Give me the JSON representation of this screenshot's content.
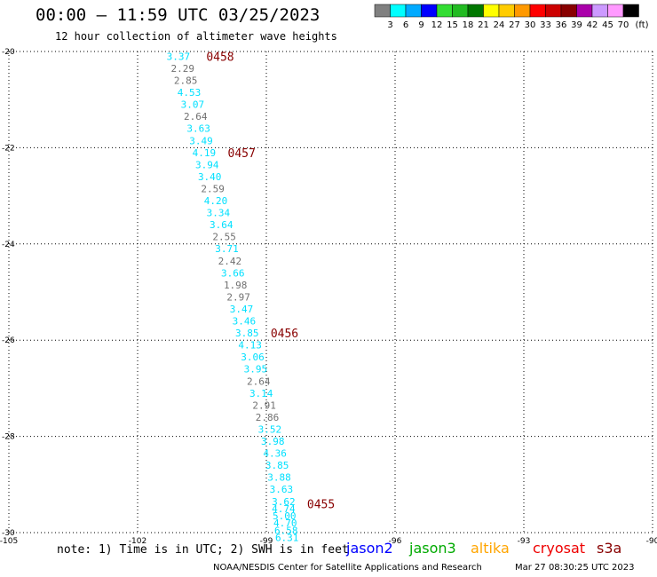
{
  "header": {
    "title": "00:00 — 11:59 UTC 03/25/2023",
    "subtitle": "12 hour collection of altimeter wave heights"
  },
  "legend": {
    "levels": [
      "3",
      "6",
      "9",
      "12",
      "15",
      "18",
      "21",
      "24",
      "27",
      "30",
      "33",
      "36",
      "39",
      "42",
      "45",
      "70"
    ],
    "unit": "(ft)",
    "colors": [
      "#808080",
      "#00ffff",
      "#00aaff",
      "#0000ff",
      "#33dd33",
      "#22bb22",
      "#007700",
      "#ffff00",
      "#ffcc00",
      "#ff9900",
      "#ff0000",
      "#cc0000",
      "#880000",
      "#aa00aa",
      "#cc99ff",
      "#ff99ff",
      "#000000"
    ]
  },
  "footer": {
    "note": "note: 1) Time is in UTC; 2) SWH is in feet",
    "missions": [
      {
        "label": "jason2",
        "color": "#0000ff"
      },
      {
        "label": "jason3",
        "color": "#00aa00"
      },
      {
        "label": "altika",
        "color": "#ffa500"
      },
      {
        "label": "cryosat",
        "color": "#ee0000"
      },
      {
        "label": "s3a",
        "color": "#880000"
      }
    ],
    "credit": "NOAA/NESDIS Center for Satellite Applications and Research",
    "timestamp": "Mar 27 08:30:25 UTC 2023"
  },
  "chart_data": {
    "type": "scatter",
    "title": "00:00 — 11:59 UTC 03/25/2023",
    "subtitle": "12 hour collection of altimeter wave heights",
    "x_ticks": [
      "-105",
      "-102",
      "-99",
      "-96",
      "-93",
      "-90"
    ],
    "y_ticks": [
      "-20",
      "-22",
      "-24",
      "-26",
      "-28",
      "-30"
    ],
    "xlim": [
      -105,
      -90
    ],
    "ylim": [
      -30,
      -20
    ],
    "grid": true,
    "series": [
      {
        "color_cyan": "#00e0ff",
        "color_gray": "#707070",
        "points": [
          {
            "lat": -20.1,
            "lon": -101.05,
            "v": "3.37",
            "c": "cyan"
          },
          {
            "lat": -20.35,
            "lon": -100.95,
            "v": "2.29",
            "c": "gray"
          },
          {
            "lat": -20.6,
            "lon": -100.88,
            "v": "2.85",
            "c": "gray"
          },
          {
            "lat": -20.85,
            "lon": -100.8,
            "v": "4.53",
            "c": "cyan"
          },
          {
            "lat": -21.1,
            "lon": -100.72,
            "v": "3.07",
            "c": "cyan"
          },
          {
            "lat": -21.35,
            "lon": -100.65,
            "v": "2.64",
            "c": "gray"
          },
          {
            "lat": -21.6,
            "lon": -100.58,
            "v": "3.63",
            "c": "cyan"
          },
          {
            "lat": -21.85,
            "lon": -100.52,
            "v": "3.49",
            "c": "cyan"
          },
          {
            "lat": -22.1,
            "lon": -100.45,
            "v": "4.19",
            "c": "cyan"
          },
          {
            "lat": -22.35,
            "lon": -100.38,
            "v": "3.94",
            "c": "cyan"
          },
          {
            "lat": -22.6,
            "lon": -100.32,
            "v": "3.40",
            "c": "cyan"
          },
          {
            "lat": -22.85,
            "lon": -100.25,
            "v": "2.59",
            "c": "gray"
          },
          {
            "lat": -23.1,
            "lon": -100.18,
            "v": "4.20",
            "c": "cyan"
          },
          {
            "lat": -23.35,
            "lon": -100.12,
            "v": "3.34",
            "c": "cyan"
          },
          {
            "lat": -23.6,
            "lon": -100.05,
            "v": "3.64",
            "c": "cyan"
          },
          {
            "lat": -23.85,
            "lon": -99.98,
            "v": "2.55",
            "c": "gray"
          },
          {
            "lat": -24.1,
            "lon": -99.92,
            "v": "3.71",
            "c": "cyan"
          },
          {
            "lat": -24.35,
            "lon": -99.85,
            "v": "2.42",
            "c": "gray"
          },
          {
            "lat": -24.6,
            "lon": -99.78,
            "v": "3.66",
            "c": "cyan"
          },
          {
            "lat": -24.85,
            "lon": -99.72,
            "v": "1.98",
            "c": "gray"
          },
          {
            "lat": -25.1,
            "lon": -99.65,
            "v": "2.97",
            "c": "gray"
          },
          {
            "lat": -25.35,
            "lon": -99.58,
            "v": "3.47",
            "c": "cyan"
          },
          {
            "lat": -25.6,
            "lon": -99.52,
            "v": "3.46",
            "c": "cyan"
          },
          {
            "lat": -25.85,
            "lon": -99.45,
            "v": "3.85",
            "c": "cyan"
          },
          {
            "lat": -26.1,
            "lon": -99.38,
            "v": "4.13",
            "c": "cyan"
          },
          {
            "lat": -26.35,
            "lon": -99.32,
            "v": "3.06",
            "c": "cyan"
          },
          {
            "lat": -26.6,
            "lon": -99.25,
            "v": "3.95",
            "c": "cyan"
          },
          {
            "lat": -26.85,
            "lon": -99.18,
            "v": "2.64",
            "c": "gray"
          },
          {
            "lat": -27.1,
            "lon": -99.12,
            "v": "3.14",
            "c": "cyan"
          },
          {
            "lat": -27.35,
            "lon": -99.05,
            "v": "2.91",
            "c": "gray"
          },
          {
            "lat": -27.6,
            "lon": -98.98,
            "v": "2.86",
            "c": "gray"
          },
          {
            "lat": -27.85,
            "lon": -98.92,
            "v": "3.52",
            "c": "cyan"
          },
          {
            "lat": -28.1,
            "lon": -98.85,
            "v": "3.98",
            "c": "cyan"
          },
          {
            "lat": -28.35,
            "lon": -98.8,
            "v": "4.36",
            "c": "cyan"
          },
          {
            "lat": -28.6,
            "lon": -98.75,
            "v": "3.85",
            "c": "cyan"
          },
          {
            "lat": -28.85,
            "lon": -98.7,
            "v": "3.88",
            "c": "cyan"
          },
          {
            "lat": -29.1,
            "lon": -98.65,
            "v": "3.63",
            "c": "cyan"
          },
          {
            "lat": -29.35,
            "lon": -98.6,
            "v": "3.62",
            "c": "cyan"
          },
          {
            "lat": -29.5,
            "lon": -98.6,
            "v": "4.74",
            "c": "cyan"
          },
          {
            "lat": -29.65,
            "lon": -98.58,
            "v": "5.00",
            "c": "cyan"
          },
          {
            "lat": -29.8,
            "lon": -98.56,
            "v": "4.70",
            "c": "cyan"
          },
          {
            "lat": -29.95,
            "lon": -98.54,
            "v": "6.58",
            "c": "cyan"
          },
          {
            "lat": -30.1,
            "lon": -98.52,
            "v": "6.31",
            "c": "cyan"
          }
        ]
      }
    ],
    "time_labels": [
      {
        "text": "0458",
        "lat": -20.1,
        "lon": -100.4
      },
      {
        "text": "0457",
        "lat": -22.1,
        "lon": -99.9
      },
      {
        "text": "0456",
        "lat": -25.85,
        "lon": -98.9
      },
      {
        "text": "0455",
        "lat": -29.4,
        "lon": -98.05
      }
    ],
    "time_label_color": "#880000"
  }
}
